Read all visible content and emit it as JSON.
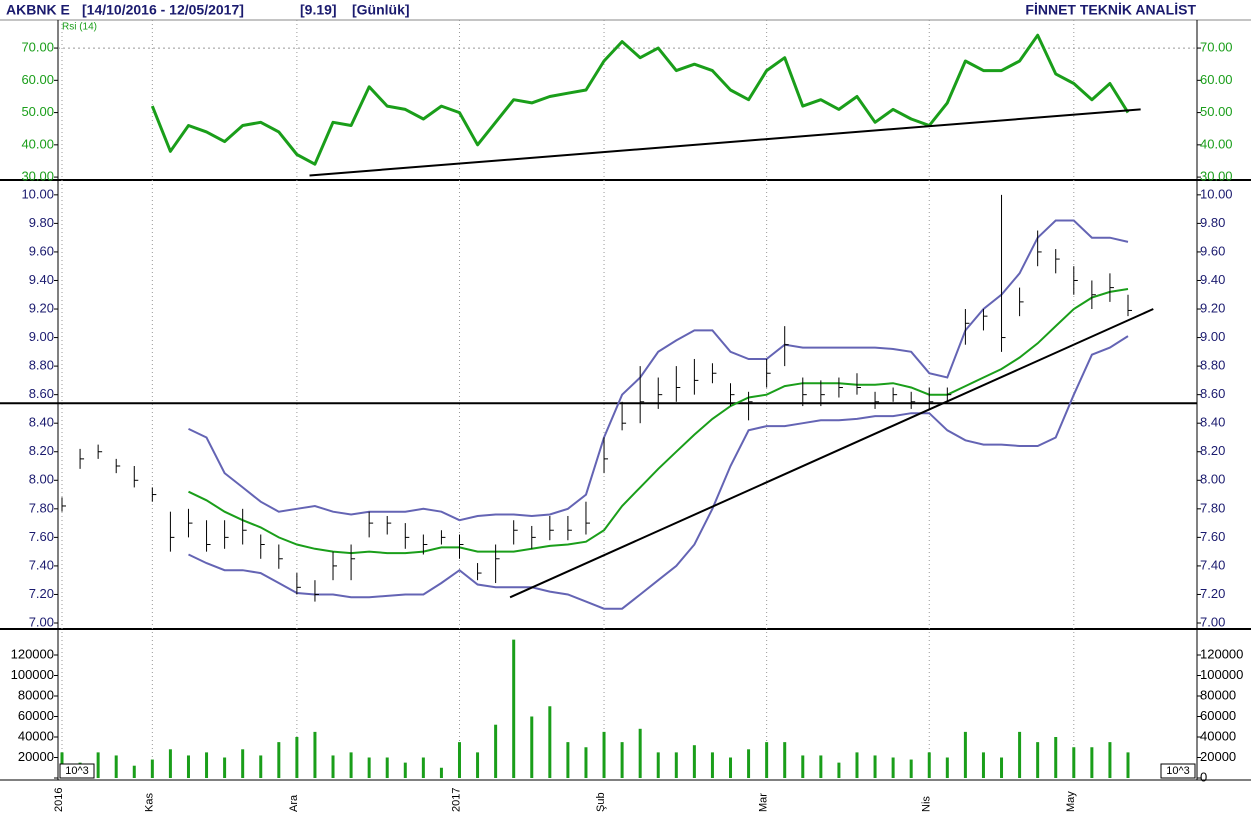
{
  "header": {
    "symbol": "AKBNK E",
    "range": "[14/10/2016 - 12/05/2017]",
    "last": "[9.19]",
    "period": "[Günlük]",
    "brand": "FİNNET TEKNİK ANALİST"
  },
  "chart_data": [
    {
      "type": "line",
      "series": [
        {
          "name": "Rsi (14)",
          "color": "#1a9e1a",
          "values": [
            null,
            null,
            null,
            null,
            null,
            52,
            38,
            46,
            44,
            41,
            46,
            47,
            44,
            37,
            34,
            47,
            46,
            58,
            52,
            51,
            48,
            52,
            50,
            40,
            47,
            54,
            53,
            55,
            56,
            57,
            66,
            72,
            67,
            70,
            63,
            65,
            63,
            57,
            54,
            63,
            67,
            52,
            54,
            51,
            55,
            47,
            51,
            48,
            46,
            53,
            66,
            63,
            63,
            66,
            74,
            62,
            59,
            54,
            59,
            50
          ]
        }
      ],
      "ylim": [
        29.1,
        78.7
      ],
      "yticks": [
        {
          "value": 30,
          "label": "30.00"
        },
        {
          "value": 40,
          "label": "40.00"
        },
        {
          "value": 50,
          "label": "50.00"
        },
        {
          "value": 60,
          "label": "60.00"
        },
        {
          "value": 70,
          "label": "70.00"
        }
      ],
      "reference_lines": [
        70
      ],
      "trendlines": [
        {
          "x": [
            13.7,
            59.7
          ],
          "y": [
            30.5,
            51
          ]
        }
      ]
    },
    {
      "type": "ohlc",
      "color": "#000000",
      "high": [
        7.88,
        8.22,
        8.25,
        8.15,
        8.1,
        7.95,
        7.78,
        7.8,
        7.72,
        7.72,
        7.8,
        7.62,
        7.55,
        7.35,
        7.3,
        7.5,
        7.55,
        7.78,
        7.75,
        7.7,
        7.62,
        7.65,
        7.62,
        7.42,
        7.55,
        7.72,
        7.68,
        7.75,
        7.75,
        7.85,
        8.3,
        8.55,
        8.8,
        8.72,
        8.8,
        8.85,
        8.82,
        8.68,
        8.62,
        8.85,
        9.08,
        8.72,
        8.7,
        8.72,
        8.75,
        8.62,
        8.65,
        8.62,
        8.65,
        8.65,
        9.2,
        9.2,
        10.0,
        9.35,
        9.75,
        9.62,
        9.5,
        9.4,
        9.45,
        9.3
      ],
      "low": [
        7.78,
        8.08,
        8.15,
        8.05,
        7.95,
        7.85,
        7.5,
        7.6,
        7.5,
        7.52,
        7.55,
        7.45,
        7.38,
        7.2,
        7.15,
        7.3,
        7.3,
        7.6,
        7.62,
        7.52,
        7.48,
        7.55,
        7.45,
        7.3,
        7.28,
        7.55,
        7.52,
        7.58,
        7.58,
        7.62,
        8.05,
        8.35,
        8.4,
        8.5,
        8.55,
        8.6,
        8.68,
        8.52,
        8.42,
        8.65,
        8.8,
        8.52,
        8.52,
        8.58,
        8.6,
        8.5,
        8.55,
        8.5,
        8.5,
        8.55,
        8.95,
        9.05,
        8.9,
        9.15,
        9.5,
        9.45,
        9.3,
        9.2,
        9.25,
        9.15
      ],
      "close": [
        7.82,
        8.15,
        8.2,
        8.1,
        8.0,
        7.9,
        7.6,
        7.7,
        7.55,
        7.6,
        7.65,
        7.55,
        7.45,
        7.25,
        7.2,
        7.4,
        7.45,
        7.7,
        7.7,
        7.6,
        7.55,
        7.6,
        7.55,
        7.35,
        7.45,
        7.65,
        7.6,
        7.65,
        7.65,
        7.7,
        8.15,
        8.4,
        8.55,
        8.6,
        8.65,
        8.7,
        8.75,
        8.6,
        8.55,
        8.75,
        8.95,
        8.6,
        8.6,
        8.65,
        8.65,
        8.55,
        8.6,
        8.55,
        8.55,
        8.6,
        9.1,
        9.15,
        9.0,
        9.25,
        9.6,
        9.55,
        9.4,
        9.3,
        9.35,
        9.19
      ],
      "series": [
        {
          "color": "#6464b4",
          "values": [
            null,
            null,
            null,
            null,
            null,
            null,
            null,
            8.36,
            8.3,
            8.05,
            7.95,
            7.85,
            7.78,
            7.8,
            7.82,
            7.78,
            7.76,
            7.78,
            7.78,
            7.78,
            7.8,
            7.78,
            7.72,
            7.75,
            7.76,
            7.76,
            7.75,
            7.76,
            7.8,
            7.9,
            8.3,
            8.6,
            8.72,
            8.9,
            8.98,
            9.05,
            9.05,
            8.9,
            8.85,
            8.85,
            8.95,
            8.93,
            8.93,
            8.93,
            8.93,
            8.93,
            8.92,
            8.9,
            8.75,
            8.72,
            9.05,
            9.2,
            9.3,
            9.45,
            9.7,
            9.82,
            9.82,
            9.7,
            9.7,
            9.67
          ]
        },
        {
          "color": "#1a9e1a",
          "values": [
            null,
            null,
            null,
            null,
            null,
            null,
            null,
            7.92,
            7.86,
            7.78,
            7.72,
            7.67,
            7.6,
            7.55,
            7.52,
            7.5,
            7.49,
            7.5,
            7.49,
            7.49,
            7.5,
            7.53,
            7.53,
            7.5,
            7.5,
            7.5,
            7.52,
            7.54,
            7.55,
            7.57,
            7.65,
            7.82,
            7.95,
            8.08,
            8.2,
            8.32,
            8.43,
            8.52,
            8.58,
            8.6,
            8.66,
            8.68,
            8.68,
            8.68,
            8.67,
            8.67,
            8.68,
            8.65,
            8.6,
            8.6,
            8.66,
            8.72,
            8.78,
            8.86,
            8.96,
            9.08,
            9.2,
            9.28,
            9.32,
            9.34
          ]
        },
        {
          "color": "#6464b4",
          "values": [
            null,
            null,
            null,
            null,
            null,
            null,
            null,
            7.48,
            7.42,
            7.37,
            7.37,
            7.35,
            7.28,
            7.21,
            7.2,
            7.2,
            7.18,
            7.18,
            7.19,
            7.2,
            7.2,
            7.28,
            7.37,
            7.27,
            7.25,
            7.25,
            7.25,
            7.22,
            7.2,
            7.15,
            7.1,
            7.1,
            7.2,
            7.3,
            7.4,
            7.55,
            7.8,
            8.1,
            8.35,
            8.38,
            8.38,
            8.4,
            8.42,
            8.42,
            8.43,
            8.45,
            8.45,
            8.47,
            8.47,
            8.35,
            8.28,
            8.25,
            8.25,
            8.24,
            8.24,
            8.3,
            8.6,
            8.88,
            8.93,
            9.01
          ]
        }
      ],
      "ylim": [
        6.965,
        10.09
      ],
      "yticks": [
        {
          "value": 7,
          "label": "7.00"
        },
        {
          "value": 7.2,
          "label": "7.20"
        },
        {
          "value": 7.4,
          "label": "7.40"
        },
        {
          "value": 7.6,
          "label": "7.60"
        },
        {
          "value": 7.8,
          "label": "7.80"
        },
        {
          "value": 8,
          "label": "8.00"
        },
        {
          "value": 8.2,
          "label": "8.20"
        },
        {
          "value": 8.4,
          "label": "8.40"
        },
        {
          "value": 8.6,
          "label": "8.60"
        },
        {
          "value": 8.8,
          "label": "8.80"
        },
        {
          "value": 9,
          "label": "9.00"
        },
        {
          "value": 9.2,
          "label": "9.20"
        },
        {
          "value": 9.4,
          "label": "9.40"
        },
        {
          "value": 9.6,
          "label": "9.60"
        },
        {
          "value": 9.8,
          "label": "9.80"
        },
        {
          "value": 10,
          "label": "10.00"
        }
      ],
      "hlines": [
        8.54
      ],
      "trendlines": [
        {
          "x": [
            24.8,
            60.4
          ],
          "y": [
            7.18,
            9.2
          ]
        }
      ]
    },
    {
      "type": "bar",
      "color": "#1a9e1a",
      "unit_label": "10^3",
      "categories": [
        "2016",
        null,
        null,
        null,
        null,
        "Kas",
        null,
        null,
        null,
        null,
        null,
        null,
        null,
        "Ara",
        null,
        null,
        null,
        null,
        null,
        null,
        null,
        null,
        "2017",
        null,
        null,
        null,
        null,
        null,
        null,
        null,
        "Şub",
        null,
        null,
        null,
        null,
        null,
        null,
        null,
        null,
        "Mar",
        null,
        null,
        null,
        null,
        null,
        null,
        null,
        null,
        "Nis",
        null,
        null,
        null,
        null,
        null,
        null,
        null,
        "May",
        null,
        null,
        null
      ],
      "values": [
        25000,
        15000,
        25000,
        22000,
        12000,
        18000,
        28000,
        22000,
        25000,
        20000,
        28000,
        22000,
        35000,
        40000,
        45000,
        22000,
        25000,
        20000,
        20000,
        15000,
        20000,
        10000,
        35000,
        25000,
        52000,
        135000,
        60000,
        70000,
        35000,
        30000,
        45000,
        35000,
        48000,
        25000,
        25000,
        32000,
        25000,
        20000,
        28000,
        35000,
        35000,
        22000,
        22000,
        15000,
        25000,
        22000,
        20000,
        18000,
        25000,
        20000,
        45000,
        25000,
        20000,
        45000,
        35000,
        40000,
        30000,
        30000,
        35000,
        25000
      ],
      "ylim": [
        -1950,
        144400
      ],
      "yticks": [
        0,
        20000,
        40000,
        60000,
        80000,
        100000,
        120000
      ]
    }
  ]
}
